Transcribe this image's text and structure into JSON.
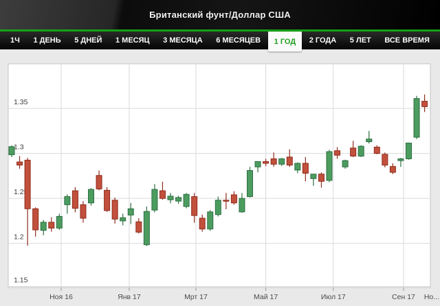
{
  "header": {
    "title": "Британский фунт/Доллар США"
  },
  "tabs": [
    {
      "label": "1Ч",
      "selected": false
    },
    {
      "label": "1 ДЕНЬ",
      "selected": false
    },
    {
      "label": "5 ДНЕЙ",
      "selected": false
    },
    {
      "label": "1 МЕСЯЦ",
      "selected": false
    },
    {
      "label": "3 МЕСЯЦА",
      "selected": false
    },
    {
      "label": "6 МЕСЯЦЕВ",
      "selected": false
    },
    {
      "label": "1 ГОД",
      "selected": true
    },
    {
      "label": "2 ГОДА",
      "selected": false
    },
    {
      "label": "5 ЛЕТ",
      "selected": false
    },
    {
      "label": "ВСЕ ВРЕМЯ",
      "selected": false
    }
  ],
  "colors": {
    "accent_green": "#13a013",
    "selected_tab_text": "#1f9e1f",
    "up_fill": "#4c9c60",
    "up_stroke": "#2d6e41",
    "down_fill": "#c1503c",
    "down_stroke": "#8f2c1c",
    "grid": "#d9d9d9",
    "plot_border": "#c4c4c4",
    "plot_bg": "#ffffff",
    "axis_text": "#3d3d3d",
    "page_bg": "#e9e9e9"
  },
  "chart_data": {
    "type": "candlestick",
    "title": "Британский фунт/Доллар США",
    "interval": "1 ГОД",
    "ylim": [
      1.151,
      1.3996
    ],
    "grid": true,
    "y_ticks": [
      {
        "value": 1.35,
        "label": "1.35"
      },
      {
        "value": 1.3,
        "label": "1.3"
      },
      {
        "value": 1.25,
        "label": "1.25"
      },
      {
        "value": 1.2,
        "label": "1.2"
      },
      {
        "value": 1.15,
        "label": "1.15"
      }
    ],
    "x_ticks": [
      {
        "index": 6.23,
        "label": "Ноя 16"
      },
      {
        "index": 14.8,
        "label": "Янв 17"
      },
      {
        "index": 23.2,
        "label": "Мрт 17"
      },
      {
        "index": 32.0,
        "label": "Май 17"
      },
      {
        "index": 40.5,
        "label": "Июл 17"
      },
      {
        "index": 49.35,
        "label": "Сен 17"
      }
    ],
    "x_edge_label": "Но...",
    "ohlc": [
      [
        1.2985,
        1.309,
        1.296,
        1.3075
      ],
      [
        1.2905,
        1.297,
        1.283,
        1.287
      ],
      [
        1.2925,
        1.295,
        1.1975,
        1.2385
      ],
      [
        1.2385,
        1.24,
        1.2075,
        1.215
      ],
      [
        1.2145,
        1.226,
        1.209,
        1.2235
      ],
      [
        1.2235,
        1.229,
        1.213,
        1.217
      ],
      [
        1.217,
        1.233,
        1.215,
        1.23
      ],
      [
        1.243,
        1.2545,
        1.233,
        1.252
      ],
      [
        1.2585,
        1.2625,
        1.2345,
        1.239
      ],
      [
        1.243,
        1.247,
        1.223,
        1.228
      ],
      [
        1.245,
        1.2615,
        1.242,
        1.26
      ],
      [
        1.2755,
        1.281,
        1.259,
        1.2605
      ],
      [
        1.259,
        1.2625,
        1.235,
        1.2365
      ],
      [
        1.248,
        1.251,
        1.222,
        1.227
      ],
      [
        1.225,
        1.233,
        1.22,
        1.2285
      ],
      [
        1.2315,
        1.245,
        1.2215,
        1.2385
      ],
      [
        1.224,
        1.228,
        1.211,
        1.2125
      ],
      [
        1.1985,
        1.241,
        1.197,
        1.2355
      ],
      [
        1.237,
        1.266,
        1.2345,
        1.26
      ],
      [
        1.2585,
        1.2685,
        1.2485,
        1.25
      ],
      [
        1.2485,
        1.256,
        1.2445,
        1.2525
      ],
      [
        1.247,
        1.253,
        1.244,
        1.251
      ],
      [
        1.241,
        1.256,
        1.239,
        1.2545
      ],
      [
        1.252,
        1.256,
        1.223,
        1.231
      ],
      [
        1.228,
        1.232,
        1.213,
        1.216
      ],
      [
        1.216,
        1.237,
        1.214,
        1.235
      ],
      [
        1.232,
        1.252,
        1.23,
        1.248
      ],
      [
        1.248,
        1.256,
        1.238,
        1.247
      ],
      [
        1.254,
        1.258,
        1.243,
        1.245
      ],
      [
        1.235,
        1.256,
        1.234,
        1.25
      ],
      [
        1.252,
        1.285,
        1.251,
        1.281
      ],
      [
        1.285,
        1.291,
        1.279,
        1.291
      ],
      [
        1.291,
        1.294,
        1.286,
        1.289
      ],
      [
        1.294,
        1.301,
        1.285,
        1.288
      ],
      [
        1.288,
        1.295,
        1.286,
        1.294
      ],
      [
        1.296,
        1.3045,
        1.285,
        1.287
      ],
      [
        1.2815,
        1.29,
        1.278,
        1.289
      ],
      [
        1.289,
        1.296,
        1.269,
        1.278
      ],
      [
        1.272,
        1.277,
        1.264,
        1.277
      ],
      [
        1.277,
        1.279,
        1.262,
        1.269
      ],
      [
        1.27,
        1.304,
        1.268,
        1.302
      ],
      [
        1.303,
        1.307,
        1.294,
        1.298
      ],
      [
        1.285,
        1.293,
        1.283,
        1.292
      ],
      [
        1.306,
        1.314,
        1.296,
        1.297
      ],
      [
        1.297,
        1.309,
        1.296,
        1.308
      ],
      [
        1.313,
        1.325,
        1.311,
        1.316
      ],
      [
        1.307,
        1.309,
        1.299,
        1.3
      ],
      [
        1.299,
        1.301,
        1.2845,
        1.287
      ],
      [
        1.2855,
        1.289,
        1.277,
        1.279
      ],
      [
        1.292,
        1.295,
        1.285,
        1.294
      ],
      [
        1.294,
        1.312,
        1.293,
        1.3115
      ],
      [
        1.318,
        1.364,
        1.316,
        1.361
      ],
      [
        1.358,
        1.3655,
        1.346,
        1.352
      ]
    ]
  }
}
